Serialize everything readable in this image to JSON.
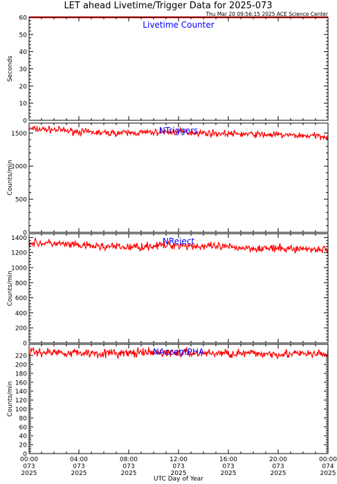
{
  "title": "LET ahead Livetime/Trigger Data for 2025-073",
  "subtitle": "Thu Mar 20 09:56:15 2025 ACE Science Center",
  "xlabel": "UTC Day of Year",
  "x_ticks": [
    {
      "time": "00:00",
      "doy": "073",
      "year": "2025"
    },
    {
      "time": "04:00",
      "doy": "073",
      "year": "2025"
    },
    {
      "time": "08:00",
      "doy": "073",
      "year": "2025"
    },
    {
      "time": "12:00",
      "doy": "073",
      "year": "2025"
    },
    {
      "time": "16:00",
      "doy": "073",
      "year": "2025"
    },
    {
      "time": "20:00",
      "doy": "073",
      "year": "2025"
    },
    {
      "time": "00:00",
      "doy": "074",
      "year": "2025"
    }
  ],
  "colors": {
    "data": "#ff0000",
    "label": "#0000ff",
    "axes": "#000000"
  },
  "chart_data": [
    {
      "type": "line",
      "series_label": "Livetime Counter",
      "ylabel": "Seconds",
      "xlim_hours": [
        0,
        24
      ],
      "ylim": [
        0,
        60
      ],
      "y_ticks": [
        0,
        10,
        20,
        30,
        40,
        50,
        60
      ],
      "x": [
        0,
        24
      ],
      "values": [
        60,
        60
      ]
    },
    {
      "type": "line",
      "series_label": "NTriggers",
      "ylabel": "Counts/min",
      "xlim_hours": [
        0,
        24
      ],
      "ylim": [
        0,
        1650
      ],
      "y_ticks": [
        0,
        500,
        1000,
        1500
      ],
      "x": [
        0,
        2,
        4,
        6,
        8,
        10,
        12,
        14,
        16,
        18,
        20,
        22,
        24
      ],
      "values": [
        1560,
        1550,
        1520,
        1500,
        1500,
        1510,
        1520,
        1500,
        1490,
        1480,
        1470,
        1460,
        1450
      ],
      "noise": 70
    },
    {
      "type": "line",
      "series_label": "NReject",
      "ylabel": "Counts/min",
      "xlim_hours": [
        0,
        24
      ],
      "ylim": [
        0,
        1450
      ],
      "y_ticks": [
        0,
        200,
        400,
        600,
        800,
        1000,
        1200,
        1400
      ],
      "x": [
        0,
        2,
        4,
        6,
        8,
        10,
        12,
        14,
        16,
        18,
        20,
        22,
        24
      ],
      "values": [
        1330,
        1320,
        1290,
        1280,
        1270,
        1290,
        1300,
        1280,
        1270,
        1260,
        1250,
        1250,
        1240
      ],
      "noise": 75
    },
    {
      "type": "line",
      "series_label": "NAcceptPHA",
      "ylabel": "Counts/min",
      "xlim_hours": [
        0,
        24
      ],
      "ylim": [
        0,
        245
      ],
      "y_ticks": [
        0,
        20,
        40,
        60,
        80,
        100,
        120,
        140,
        160,
        180,
        200,
        220
      ],
      "x": [
        0,
        2,
        4,
        6,
        8,
        10,
        12,
        14,
        16,
        18,
        20,
        22,
        24
      ],
      "values": [
        228,
        227,
        226,
        225,
        225,
        226,
        226,
        225,
        225,
        224,
        224,
        223,
        223
      ],
      "noise": 14
    }
  ]
}
